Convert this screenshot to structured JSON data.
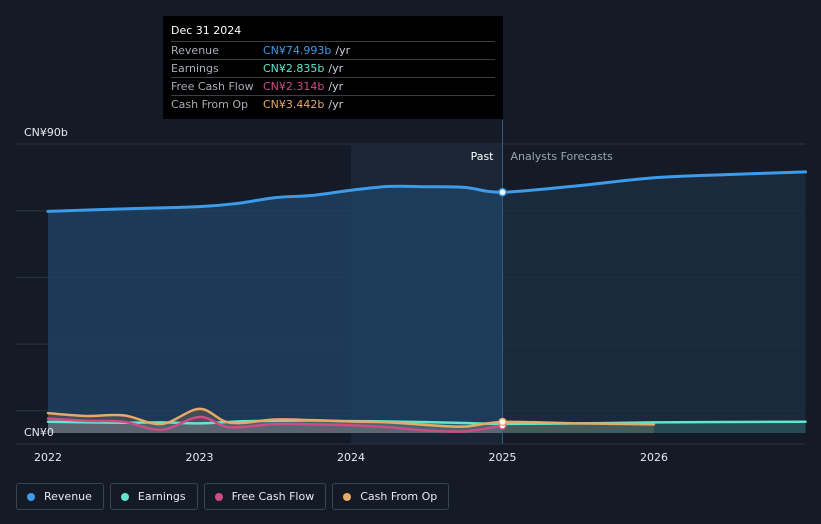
{
  "chart_data": {
    "type": "line",
    "y_axis": {
      "top_label": "CN¥90b",
      "bottom_label": "CN¥0",
      "ylim": [
        0,
        90
      ]
    },
    "x_ticks": [
      "2022",
      "2023",
      "2024",
      "2025",
      "2026"
    ],
    "x_range": [
      2021.8,
      2027.0
    ],
    "divider_x": 2025.0,
    "past_label": "Past",
    "forecast_label": "Analysts Forecasts",
    "series": [
      {
        "name": "Revenue",
        "color": "#3d9be9",
        "points": [
          [
            2022.0,
            69.0
          ],
          [
            2022.5,
            69.8
          ],
          [
            2023.0,
            70.5
          ],
          [
            2023.25,
            71.5
          ],
          [
            2023.5,
            73.3
          ],
          [
            2023.75,
            74.0
          ],
          [
            2024.0,
            75.6
          ],
          [
            2024.25,
            76.8
          ],
          [
            2024.5,
            76.7
          ],
          [
            2024.75,
            76.5
          ],
          [
            2025.0,
            74.993
          ],
          [
            2025.5,
            77.0
          ],
          [
            2026.0,
            79.5
          ],
          [
            2026.5,
            80.5
          ],
          [
            2027.0,
            81.3
          ]
        ]
      },
      {
        "name": "Earnings",
        "color": "#5ee6cf",
        "points": [
          [
            2022.0,
            3.5
          ],
          [
            2022.5,
            3.2
          ],
          [
            2022.75,
            3.3
          ],
          [
            2023.0,
            3.0
          ],
          [
            2023.25,
            3.6
          ],
          [
            2023.5,
            3.8
          ],
          [
            2023.75,
            3.9
          ],
          [
            2024.0,
            3.7
          ],
          [
            2024.25,
            3.6
          ],
          [
            2024.5,
            3.4
          ],
          [
            2024.75,
            3.1
          ],
          [
            2025.0,
            2.835
          ],
          [
            2025.5,
            3.0
          ],
          [
            2026.0,
            3.3
          ],
          [
            2027.0,
            3.5
          ]
        ]
      },
      {
        "name": "Free Cash Flow",
        "color": "#cc4d85",
        "points": [
          [
            2022.0,
            4.5
          ],
          [
            2022.25,
            3.8
          ],
          [
            2022.5,
            3.5
          ],
          [
            2022.75,
            1.0
          ],
          [
            2023.0,
            5.0
          ],
          [
            2023.2,
            1.8
          ],
          [
            2023.5,
            2.8
          ],
          [
            2023.75,
            2.7
          ],
          [
            2024.0,
            2.4
          ],
          [
            2024.25,
            1.8
          ],
          [
            2024.5,
            0.8
          ],
          [
            2024.75,
            0.5
          ],
          [
            2025.0,
            2.314
          ]
        ]
      },
      {
        "name": "Cash From Op",
        "color": "#e8a866",
        "points": [
          [
            2022.0,
            6.2
          ],
          [
            2022.25,
            5.3
          ],
          [
            2022.5,
            5.5
          ],
          [
            2022.75,
            2.8
          ],
          [
            2023.0,
            7.5
          ],
          [
            2023.2,
            3.2
          ],
          [
            2023.5,
            4.2
          ],
          [
            2023.75,
            4.0
          ],
          [
            2024.0,
            3.6
          ],
          [
            2024.25,
            3.3
          ],
          [
            2024.5,
            2.5
          ],
          [
            2024.75,
            2.0
          ],
          [
            2025.0,
            3.442
          ],
          [
            2025.5,
            3.0
          ],
          [
            2026.0,
            2.7
          ]
        ]
      }
    ]
  },
  "tooltip": {
    "date": "Dec 31 2024",
    "rows": [
      {
        "label": "Revenue",
        "value": "CN¥74.993b",
        "unit": "/yr",
        "color": "#3d9be9"
      },
      {
        "label": "Earnings",
        "value": "CN¥2.835b",
        "unit": "/yr",
        "color": "#5ee6cf"
      },
      {
        "label": "Free Cash Flow",
        "value": "CN¥2.314b",
        "unit": "/yr",
        "color": "#cc4d85"
      },
      {
        "label": "Cash From Op",
        "value": "CN¥3.442b",
        "unit": "/yr",
        "color": "#e8a866"
      }
    ]
  },
  "legend": [
    {
      "label": "Revenue",
      "color": "#3d9be9"
    },
    {
      "label": "Earnings",
      "color": "#5ee6cf"
    },
    {
      "label": "Free Cash Flow",
      "color": "#cc4d85"
    },
    {
      "label": "Cash From Op",
      "color": "#e8a866"
    }
  ]
}
